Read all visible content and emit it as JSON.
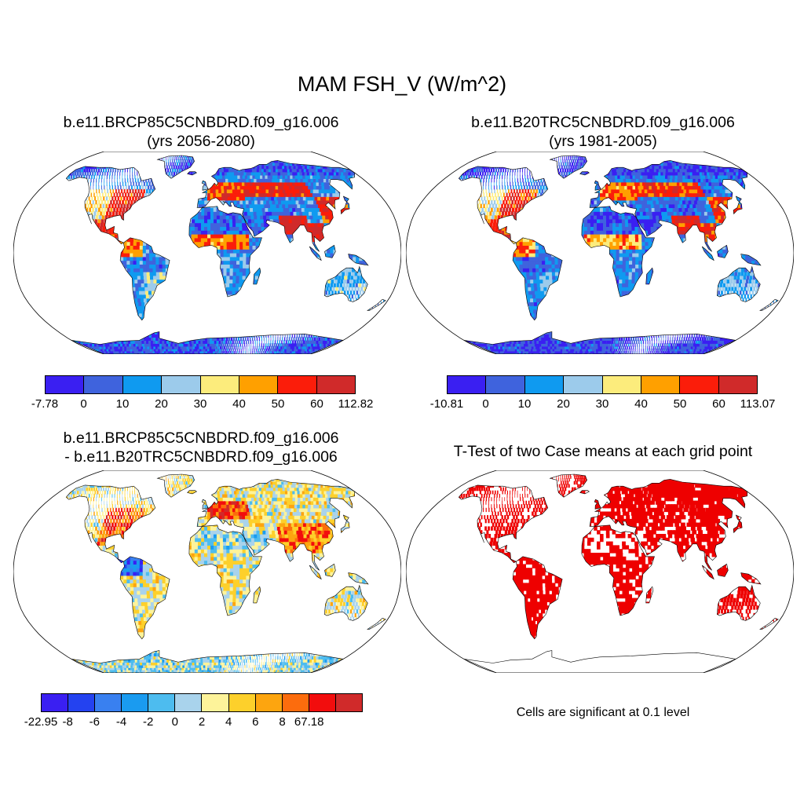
{
  "title": "MAM FSH_V (W/m^2)",
  "panels": {
    "top_left": {
      "title_line1": "b.e11.BRCP85C5CNBDRD.f09_g16.006",
      "title_line2": "(yrs 2056-2080)",
      "colorbar": {
        "labels": [
          "-7.78",
          "0",
          "10",
          "20",
          "30",
          "40",
          "50",
          "60",
          "112.82"
        ],
        "colors": [
          "#3a1ff2",
          "#3f63dd",
          "#0f9af0",
          "#9ccbeb",
          "#fcec7c",
          "#ffa000",
          "#fb1d0a",
          "#d02a2a"
        ]
      }
    },
    "top_right": {
      "title_line1": "b.e11.B20TRC5CNBDRD.f09_g16.006",
      "title_line2": "(yrs 1981-2005)",
      "colorbar": {
        "labels": [
          "-10.81",
          "0",
          "10",
          "20",
          "30",
          "40",
          "50",
          "60",
          "113.07"
        ],
        "colors": [
          "#3a1ff2",
          "#3f63dd",
          "#0f9af0",
          "#9ccbeb",
          "#fcec7c",
          "#ffa000",
          "#fb1d0a",
          "#d02a2a"
        ]
      }
    },
    "bottom_left": {
      "title_line1": "b.e11.BRCP85C5CNBDRD.f09_g16.006",
      "title_line2": "- b.e11.B20TRC5CNBDRD.f09_g16.006",
      "colorbar": {
        "labels": [
          "-22.95",
          "-8",
          "-6",
          "-4",
          "-2",
          "0",
          "2",
          "4",
          "6",
          "8",
          "67.18"
        ],
        "colors": [
          "#3a1ff2",
          "#2442f0",
          "#3980f0",
          "#1a9bf0",
          "#4dbcef",
          "#a9d3ec",
          "#fdf39a",
          "#fdd02b",
          "#fda50f",
          "#fc6c0d",
          "#f20d0d",
          "#d02a2a"
        ]
      }
    },
    "bottom_right": {
      "title_line1": "T-Test of two Case means at each grid point",
      "note": "Cells are significant at 0.1 level",
      "significance_color": "#ee0000"
    }
  },
  "ocean_color": "#ffffff",
  "coast_color": "#000000"
}
